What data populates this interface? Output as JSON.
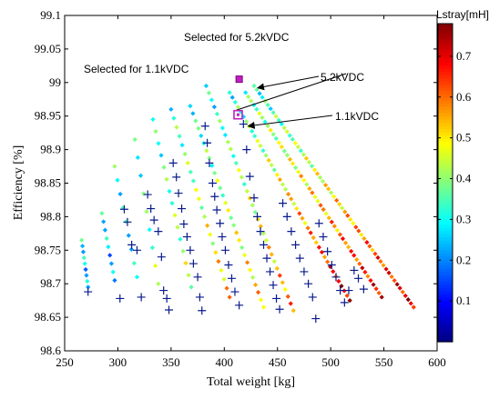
{
  "chart_data": {
    "type": "scatter",
    "xlabel": "Total weight [kg]",
    "ylabel": "Efficiency [%]",
    "xlim": [
      250,
      600
    ],
    "ylim": [
      98.6,
      99.1
    ],
    "xticks": [
      "250",
      "300",
      "350",
      "400",
      "450",
      "500",
      "550",
      "600"
    ],
    "yticks": [
      "98.6",
      "98.65",
      "98.7",
      "98.75",
      "98.8",
      "98.85",
      "98.9",
      "98.95",
      "99",
      "99.05",
      "99.1"
    ],
    "grid": false,
    "colorbar": {
      "label": "Lstray[mH]",
      "range": [
        0,
        0.78
      ],
      "ticks": [
        "0.1",
        "0.2",
        "0.3",
        "0.4",
        "0.5",
        "0.6",
        "0.7"
      ],
      "colormap": "jet"
    },
    "series": [
      {
        "marker": "diamond",
        "coloring": "Lstray[mH]",
        "bands": [
          {
            "x": [
              266,
              272
            ],
            "y": [
              98.765,
              98.695
            ],
            "c": [
              0.3,
              0.22
            ]
          },
          {
            "x": [
              285,
              297
            ],
            "y": [
              98.805,
              98.705
            ],
            "c": [
              0.3,
              0.2
            ]
          },
          {
            "x": [
              297,
              318
            ],
            "y": [
              98.875,
              98.71
            ],
            "c": [
              0.32,
              0.26
            ]
          },
          {
            "x": [
              316,
              338
            ],
            "y": [
              98.915,
              98.7
            ],
            "c": [
              0.3,
              0.4
            ]
          },
          {
            "x": [
              333,
              369
            ],
            "y": [
              98.945,
              98.695
            ],
            "c": [
              0.3,
              0.45
            ]
          },
          {
            "x": [
              350,
              405
            ],
            "y": [
              98.96,
              98.68
            ],
            "c": [
              0.32,
              0.55
            ]
          },
          {
            "x": [
              368,
              437
            ],
            "y": [
              98.965,
              98.665
            ],
            "c": [
              0.3,
              0.55
            ]
          },
          {
            "x": [
              383,
              465
            ],
            "y": [
              98.995,
              98.66
            ],
            "c": [
              0.28,
              0.6
            ]
          },
          {
            "x": [
              405,
              518
            ],
            "y": [
              98.985,
              98.675
            ],
            "c": [
              0.3,
              0.72
            ]
          },
          {
            "x": [
              420,
              548
            ],
            "y": [
              98.985,
              98.68
            ],
            "c": [
              0.35,
              0.7
            ]
          },
          {
            "x": [
              428,
              578
            ],
            "y": [
              98.995,
              98.665
            ],
            "c": [
              0.3,
              0.72
            ]
          }
        ]
      },
      {
        "marker": "plus",
        "color": "#0a1a8c",
        "points": [
          [
            272,
            98.688
          ],
          [
            306,
            98.811
          ],
          [
            309,
            98.792
          ],
          [
            313,
            98.758
          ],
          [
            302,
            98.678
          ],
          [
            318,
            98.75
          ],
          [
            322,
            98.68
          ],
          [
            328,
            98.833
          ],
          [
            331,
            98.812
          ],
          [
            334,
            98.795
          ],
          [
            338,
            98.778
          ],
          [
            341,
            98.74
          ],
          [
            343,
            98.69
          ],
          [
            346,
            98.678
          ],
          [
            348,
            98.661
          ],
          [
            352,
            98.88
          ],
          [
            355,
            98.859
          ],
          [
            357,
            98.835
          ],
          [
            360,
            98.812
          ],
          [
            362,
            98.789
          ],
          [
            365,
            98.77
          ],
          [
            368,
            98.75
          ],
          [
            371,
            98.73
          ],
          [
            375,
            98.71
          ],
          [
            377,
            98.68
          ],
          [
            379,
            98.66
          ],
          [
            382,
            98.935
          ],
          [
            384,
            98.91
          ],
          [
            386,
            98.88
          ],
          [
            389,
            98.85
          ],
          [
            391,
            98.83
          ],
          [
            393,
            98.81
          ],
          [
            396,
            98.79
          ],
          [
            398,
            98.77
          ],
          [
            401,
            98.75
          ],
          [
            404,
            98.728
          ],
          [
            407,
            98.708
          ],
          [
            410,
            98.688
          ],
          [
            414,
            98.668
          ],
          [
            418,
            98.938
          ],
          [
            421,
            98.9
          ],
          [
            424,
            98.86
          ],
          [
            428,
            98.828
          ],
          [
            431,
            98.8
          ],
          [
            434,
            98.778
          ],
          [
            437,
            98.758
          ],
          [
            440,
            98.738
          ],
          [
            443,
            98.718
          ],
          [
            446,
            98.698
          ],
          [
            449,
            98.678
          ],
          [
            452,
            98.662
          ],
          [
            455,
            98.82
          ],
          [
            459,
            98.8
          ],
          [
            463,
            98.778
          ],
          [
            467,
            98.758
          ],
          [
            471,
            98.738
          ],
          [
            475,
            98.718
          ],
          [
            479,
            98.7
          ],
          [
            483,
            98.68
          ],
          [
            486,
            98.648
          ],
          [
            489,
            98.79
          ],
          [
            493,
            98.77
          ],
          [
            497,
            98.748
          ],
          [
            501,
            98.728
          ],
          [
            505,
            98.71
          ],
          [
            509,
            98.69
          ],
          [
            513,
            98.672
          ],
          [
            517,
            98.69
          ],
          [
            522,
            98.72
          ],
          [
            526,
            98.708
          ],
          [
            531,
            98.692
          ]
        ]
      }
    ],
    "annotations": [
      {
        "text": "Selected for 5.2kVDC",
        "target": [
          414,
          99.005
        ],
        "marker": "magenta-marker"
      },
      {
        "text": "Selected for 1.1kVDC",
        "target": [
          413,
          98.952
        ],
        "marker": "magenta-square"
      },
      {
        "text": "5.2kVDC",
        "target": [
          428,
          98.992
        ]
      },
      {
        "text": "1.1kVDC",
        "target": [
          420,
          98.935
        ]
      }
    ]
  }
}
